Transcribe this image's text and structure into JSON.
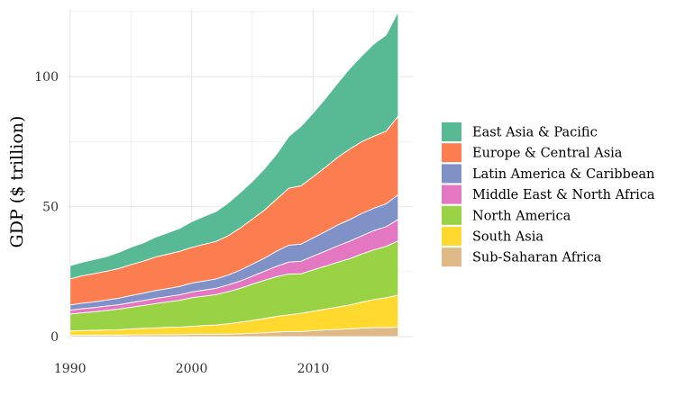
{
  "chart_data": {
    "type": "area",
    "stacked": true,
    "title": "",
    "xlabel": "",
    "ylabel": "GDP ($ trillion)",
    "xlim": [
      1989.8,
      2018.2
    ],
    "ylim": [
      -1,
      126
    ],
    "x_ticks": [
      1990,
      2000,
      2010
    ],
    "y_ticks": [
      0,
      50,
      100
    ],
    "grid": true,
    "legend_position": "right",
    "x": [
      1990,
      1991,
      1992,
      1993,
      1994,
      1995,
      1996,
      1997,
      1998,
      1999,
      2000,
      2001,
      2002,
      2003,
      2004,
      2005,
      2006,
      2007,
      2008,
      2009,
      2010,
      2011,
      2012,
      2013,
      2014,
      2015,
      2016,
      2017
    ],
    "series": [
      {
        "name": "Sub-Saharan Africa",
        "color": "#DEB887",
        "values": [
          0.5,
          0.6,
          0.6,
          0.6,
          0.6,
          0.7,
          0.7,
          0.8,
          0.8,
          0.8,
          0.9,
          0.9,
          0.9,
          1.0,
          1.1,
          1.3,
          1.5,
          1.8,
          2.0,
          2.0,
          2.3,
          2.6,
          2.8,
          3.0,
          3.3,
          3.5,
          3.5,
          3.7
        ]
      },
      {
        "name": "South Asia",
        "color": "#FFD92F",
        "values": [
          1.7,
          1.8,
          1.9,
          2.0,
          2.1,
          2.3,
          2.5,
          2.6,
          2.8,
          2.9,
          3.1,
          3.4,
          3.6,
          4.0,
          4.5,
          5.0,
          5.5,
          6.0,
          6.4,
          7.0,
          7.5,
          8.0,
          8.6,
          9.2,
          10.0,
          10.8,
          11.5,
          12.3
        ]
      },
      {
        "name": "North America",
        "color": "#99D245",
        "values": [
          6.5,
          6.8,
          7.1,
          7.5,
          7.9,
          8.3,
          8.8,
          9.3,
          9.8,
          10.3,
          11.0,
          11.3,
          11.7,
          12.3,
          13.0,
          13.9,
          14.7,
          15.3,
          15.7,
          15.2,
          15.9,
          16.5,
          17.2,
          17.8,
          18.5,
          19.1,
          19.7,
          20.9
        ]
      },
      {
        "name": "Middle East & North Africa",
        "color": "#E377C2",
        "values": [
          1.5,
          1.6,
          1.6,
          1.7,
          1.7,
          1.8,
          1.9,
          2.0,
          2.0,
          2.1,
          2.2,
          2.3,
          2.4,
          2.6,
          2.8,
          3.1,
          3.5,
          4.0,
          4.6,
          4.8,
          5.3,
          5.8,
          6.3,
          6.7,
          7.0,
          7.4,
          7.6,
          8.2
        ]
      },
      {
        "name": "Latin America & Caribbean",
        "color": "#8091C8",
        "values": [
          2.0,
          2.1,
          2.2,
          2.3,
          2.5,
          2.7,
          2.8,
          3.0,
          3.1,
          3.2,
          3.4,
          3.5,
          3.6,
          3.8,
          4.2,
          4.6,
          5.0,
          5.8,
          6.5,
          6.6,
          7.0,
          7.5,
          8.0,
          8.3,
          8.6,
          8.6,
          8.8,
          9.5
        ]
      },
      {
        "name": "Europe & Central Asia",
        "color": "#FC7D4F",
        "values": [
          10.0,
          10.5,
          10.9,
          11.1,
          11.4,
          11.9,
          12.3,
          12.9,
          13.2,
          13.5,
          13.7,
          14.1,
          14.4,
          15.1,
          16.2,
          17.3,
          18.5,
          20.0,
          21.9,
          22.4,
          23.5,
          24.7,
          26.0,
          27.1,
          27.6,
          27.7,
          27.9,
          30.2
        ]
      },
      {
        "name": "East Asia & Pacific",
        "color": "#58BA94",
        "values": [
          5.1,
          5.2,
          5.4,
          5.6,
          6.2,
          6.7,
          7.0,
          7.6,
          8.2,
          8.8,
          9.9,
          10.7,
          11.5,
          12.6,
          13.6,
          14.5,
          15.9,
          17.3,
          19.9,
          22.9,
          24.5,
          26.4,
          28.5,
          30.9,
          33.0,
          35.5,
          37.0,
          40.2
        ]
      }
    ],
    "legend_order": [
      "East Asia & Pacific",
      "Europe & Central Asia",
      "Latin America & Caribbean",
      "Middle East & North Africa",
      "North America",
      "South Asia",
      "Sub-Saharan Africa"
    ]
  }
}
